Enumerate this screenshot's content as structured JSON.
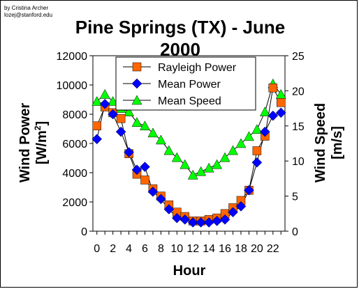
{
  "credit": {
    "line1": "by Cristina Archer",
    "line2": "lozej@stanford.edu"
  },
  "chart_data": {
    "type": "line",
    "title": "Pine Springs (TX) - June 2000",
    "title_lines": [
      "Pine Springs (TX) - June",
      "2000"
    ],
    "xlabel": "Hour",
    "ylabel_left_lines": [
      "Wind Power",
      "[W/m",
      "2",
      "]"
    ],
    "ylabel_right": "Wind Speed [m/s]",
    "ylabel_right_lines": [
      "Wind Speed",
      "[m/s]"
    ],
    "x": [
      0,
      1,
      2,
      3,
      4,
      5,
      6,
      7,
      8,
      9,
      10,
      11,
      12,
      13,
      14,
      15,
      16,
      17,
      18,
      19,
      20,
      21,
      22,
      23
    ],
    "xlim": [
      -0.5,
      23.5
    ],
    "x_tick_labels": [
      "0",
      "2",
      "4",
      "6",
      "8",
      "10",
      "12",
      "14",
      "16",
      "18",
      "20",
      "22"
    ],
    "x_tick_values": [
      0,
      2,
      4,
      6,
      8,
      10,
      12,
      14,
      16,
      18,
      20,
      22
    ],
    "ylim_left": [
      0,
      12000
    ],
    "y_left_ticks": [
      0,
      2000,
      4000,
      6000,
      8000,
      10000,
      12000
    ],
    "ylim_right": [
      0,
      25
    ],
    "y_right_ticks": [
      0,
      5,
      10,
      15,
      20,
      25
    ],
    "legend_position": "top-center",
    "grid": false,
    "series": [
      {
        "name": "Rayleigh Power",
        "axis": "left",
        "marker": "square",
        "color": "#ff6600",
        "values": [
          7200,
          8500,
          8100,
          7700,
          5300,
          3900,
          3500,
          2900,
          2400,
          1800,
          1300,
          1000,
          700,
          700,
          800,
          900,
          1200,
          1600,
          2100,
          2800,
          5500,
          6500,
          9800,
          8800
        ]
      },
      {
        "name": "Mean Power",
        "axis": "left",
        "marker": "diamond",
        "color": "#0000ff",
        "values": [
          6300,
          8700,
          8000,
          6800,
          5400,
          4200,
          4400,
          2700,
          2200,
          1500,
          900,
          800,
          600,
          600,
          600,
          700,
          800,
          1300,
          1700,
          2800,
          4700,
          6800,
          7900,
          8100
        ]
      },
      {
        "name": "Mean Speed",
        "axis": "right",
        "marker": "triangle",
        "color": "#00ff00",
        "values": [
          18.5,
          19.5,
          18.5,
          17.5,
          17,
          15.5,
          15,
          14,
          13,
          11.5,
          10.5,
          9.5,
          8,
          8.5,
          9,
          9.5,
          10.5,
          11.5,
          12.5,
          13.5,
          14.5,
          17,
          21,
          19.5
        ]
      }
    ]
  }
}
